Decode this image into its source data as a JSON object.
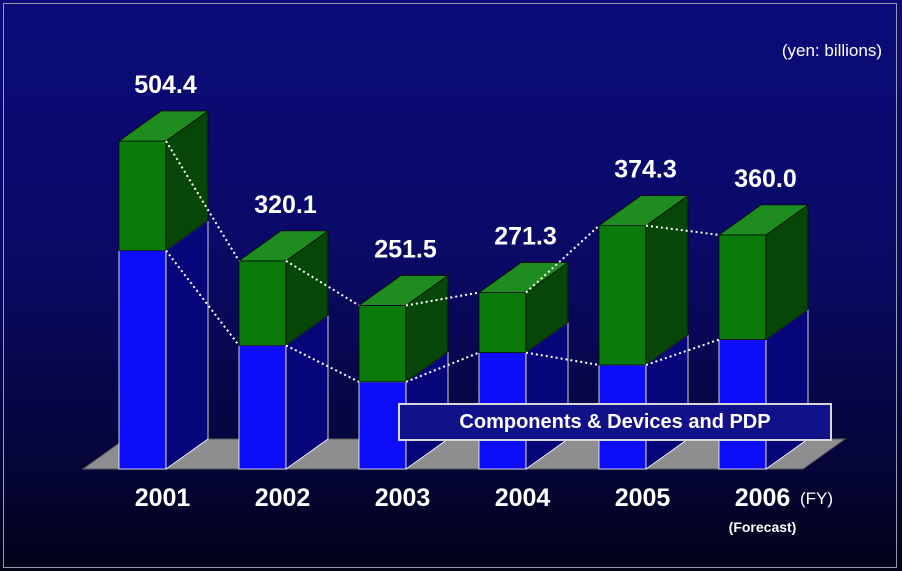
{
  "chart_data": {
    "type": "bar",
    "stacked": true,
    "style": "3d",
    "unit_label": "(yen: billions)",
    "categories": [
      "2001",
      "2002",
      "2003",
      "2004",
      "2005",
      "2006"
    ],
    "category_notes": [
      "",
      "",
      "",
      "",
      "",
      "(Forecast)"
    ],
    "x_axis_suffix": "(FY)",
    "totals": [
      504.4,
      320.1,
      251.5,
      271.3,
      374.3,
      360.0
    ],
    "total_labels": [
      "504.4",
      "320.1",
      "251.5",
      "271.3",
      "374.3",
      "360.0"
    ],
    "series": [
      {
        "name": "Components & Devices and PDP",
        "color": "#0d0dfa",
        "side_color": "#06067a",
        "values": [
          336,
          190,
          134,
          179,
          160,
          199
        ]
      },
      {
        "name": "",
        "color": "#0a7a0a",
        "top_color": "#1e8c1e",
        "side_color": "#064606",
        "values": [
          168.4,
          130.1,
          117.5,
          92.3,
          214.3,
          161.0
        ]
      }
    ],
    "callout_label": "Components & Devices and PDP",
    "floor_color": "#8e8e8e",
    "ylim": [
      0,
      504.4
    ]
  }
}
